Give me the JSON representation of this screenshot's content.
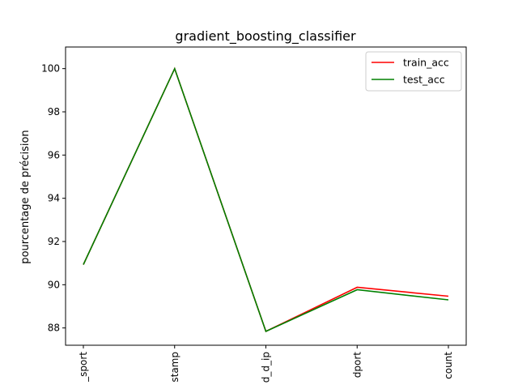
{
  "chart_data": {
    "type": "line",
    "title": "gradient_boosting_classifier",
    "xlabel": "",
    "ylabel": "pourcentage de précision",
    "categories": [
      "_sport",
      "stamp",
      "d_d_ip",
      "dport",
      "count"
    ],
    "ylim": [
      87.2,
      101
    ],
    "yticks": [
      88,
      90,
      92,
      94,
      96,
      98,
      100
    ],
    "grid": false,
    "legend_position": "top-right",
    "series": [
      {
        "name": "train_acc",
        "color": "#ff0000",
        "values": [
          90.93,
          100.0,
          87.84,
          89.88,
          89.47
        ]
      },
      {
        "name": "test_acc",
        "color": "#008000",
        "values": [
          90.93,
          100.0,
          87.84,
          89.77,
          89.3
        ]
      }
    ]
  }
}
